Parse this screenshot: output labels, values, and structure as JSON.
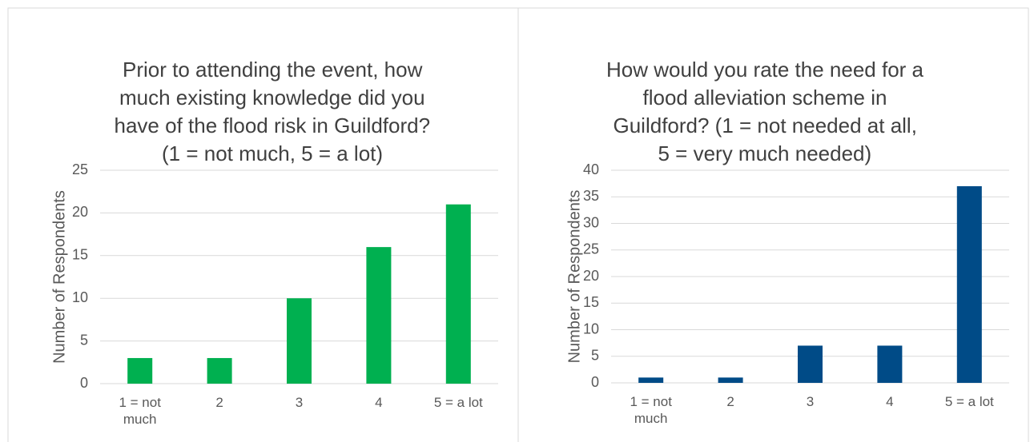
{
  "chart_data": [
    {
      "type": "bar",
      "title": [
        "Prior to attending the event, how",
        "much existing knowledge did you",
        "have of the flood risk in Guildford?",
        "(1 = not much, 5 = a lot)"
      ],
      "ylabel": "Number of Respondents",
      "categories": [
        "1 = not much",
        "2",
        "3",
        "4",
        "5 = a lot"
      ],
      "values": [
        3,
        3,
        10,
        16,
        21
      ],
      "color": "#00b050",
      "ylim": [
        0,
        25
      ],
      "yticks": [
        0,
        5,
        10,
        15,
        20,
        25
      ],
      "grid": true
    },
    {
      "type": "bar",
      "title": [
        "How would you rate the need for a",
        "flood alleviation scheme in",
        "Guildford?  (1 = not needed at all,",
        "5 = very much needed)"
      ],
      "ylabel": "Number of Respondents",
      "categories": [
        "1 = not much",
        "2",
        "3",
        "4",
        "5 = a lot"
      ],
      "values": [
        1,
        1,
        7,
        7,
        37
      ],
      "color": "#004b87",
      "ylim": [
        0,
        40
      ],
      "yticks": [
        0,
        5,
        10,
        15,
        20,
        25,
        30,
        35,
        40
      ],
      "grid": true
    }
  ]
}
